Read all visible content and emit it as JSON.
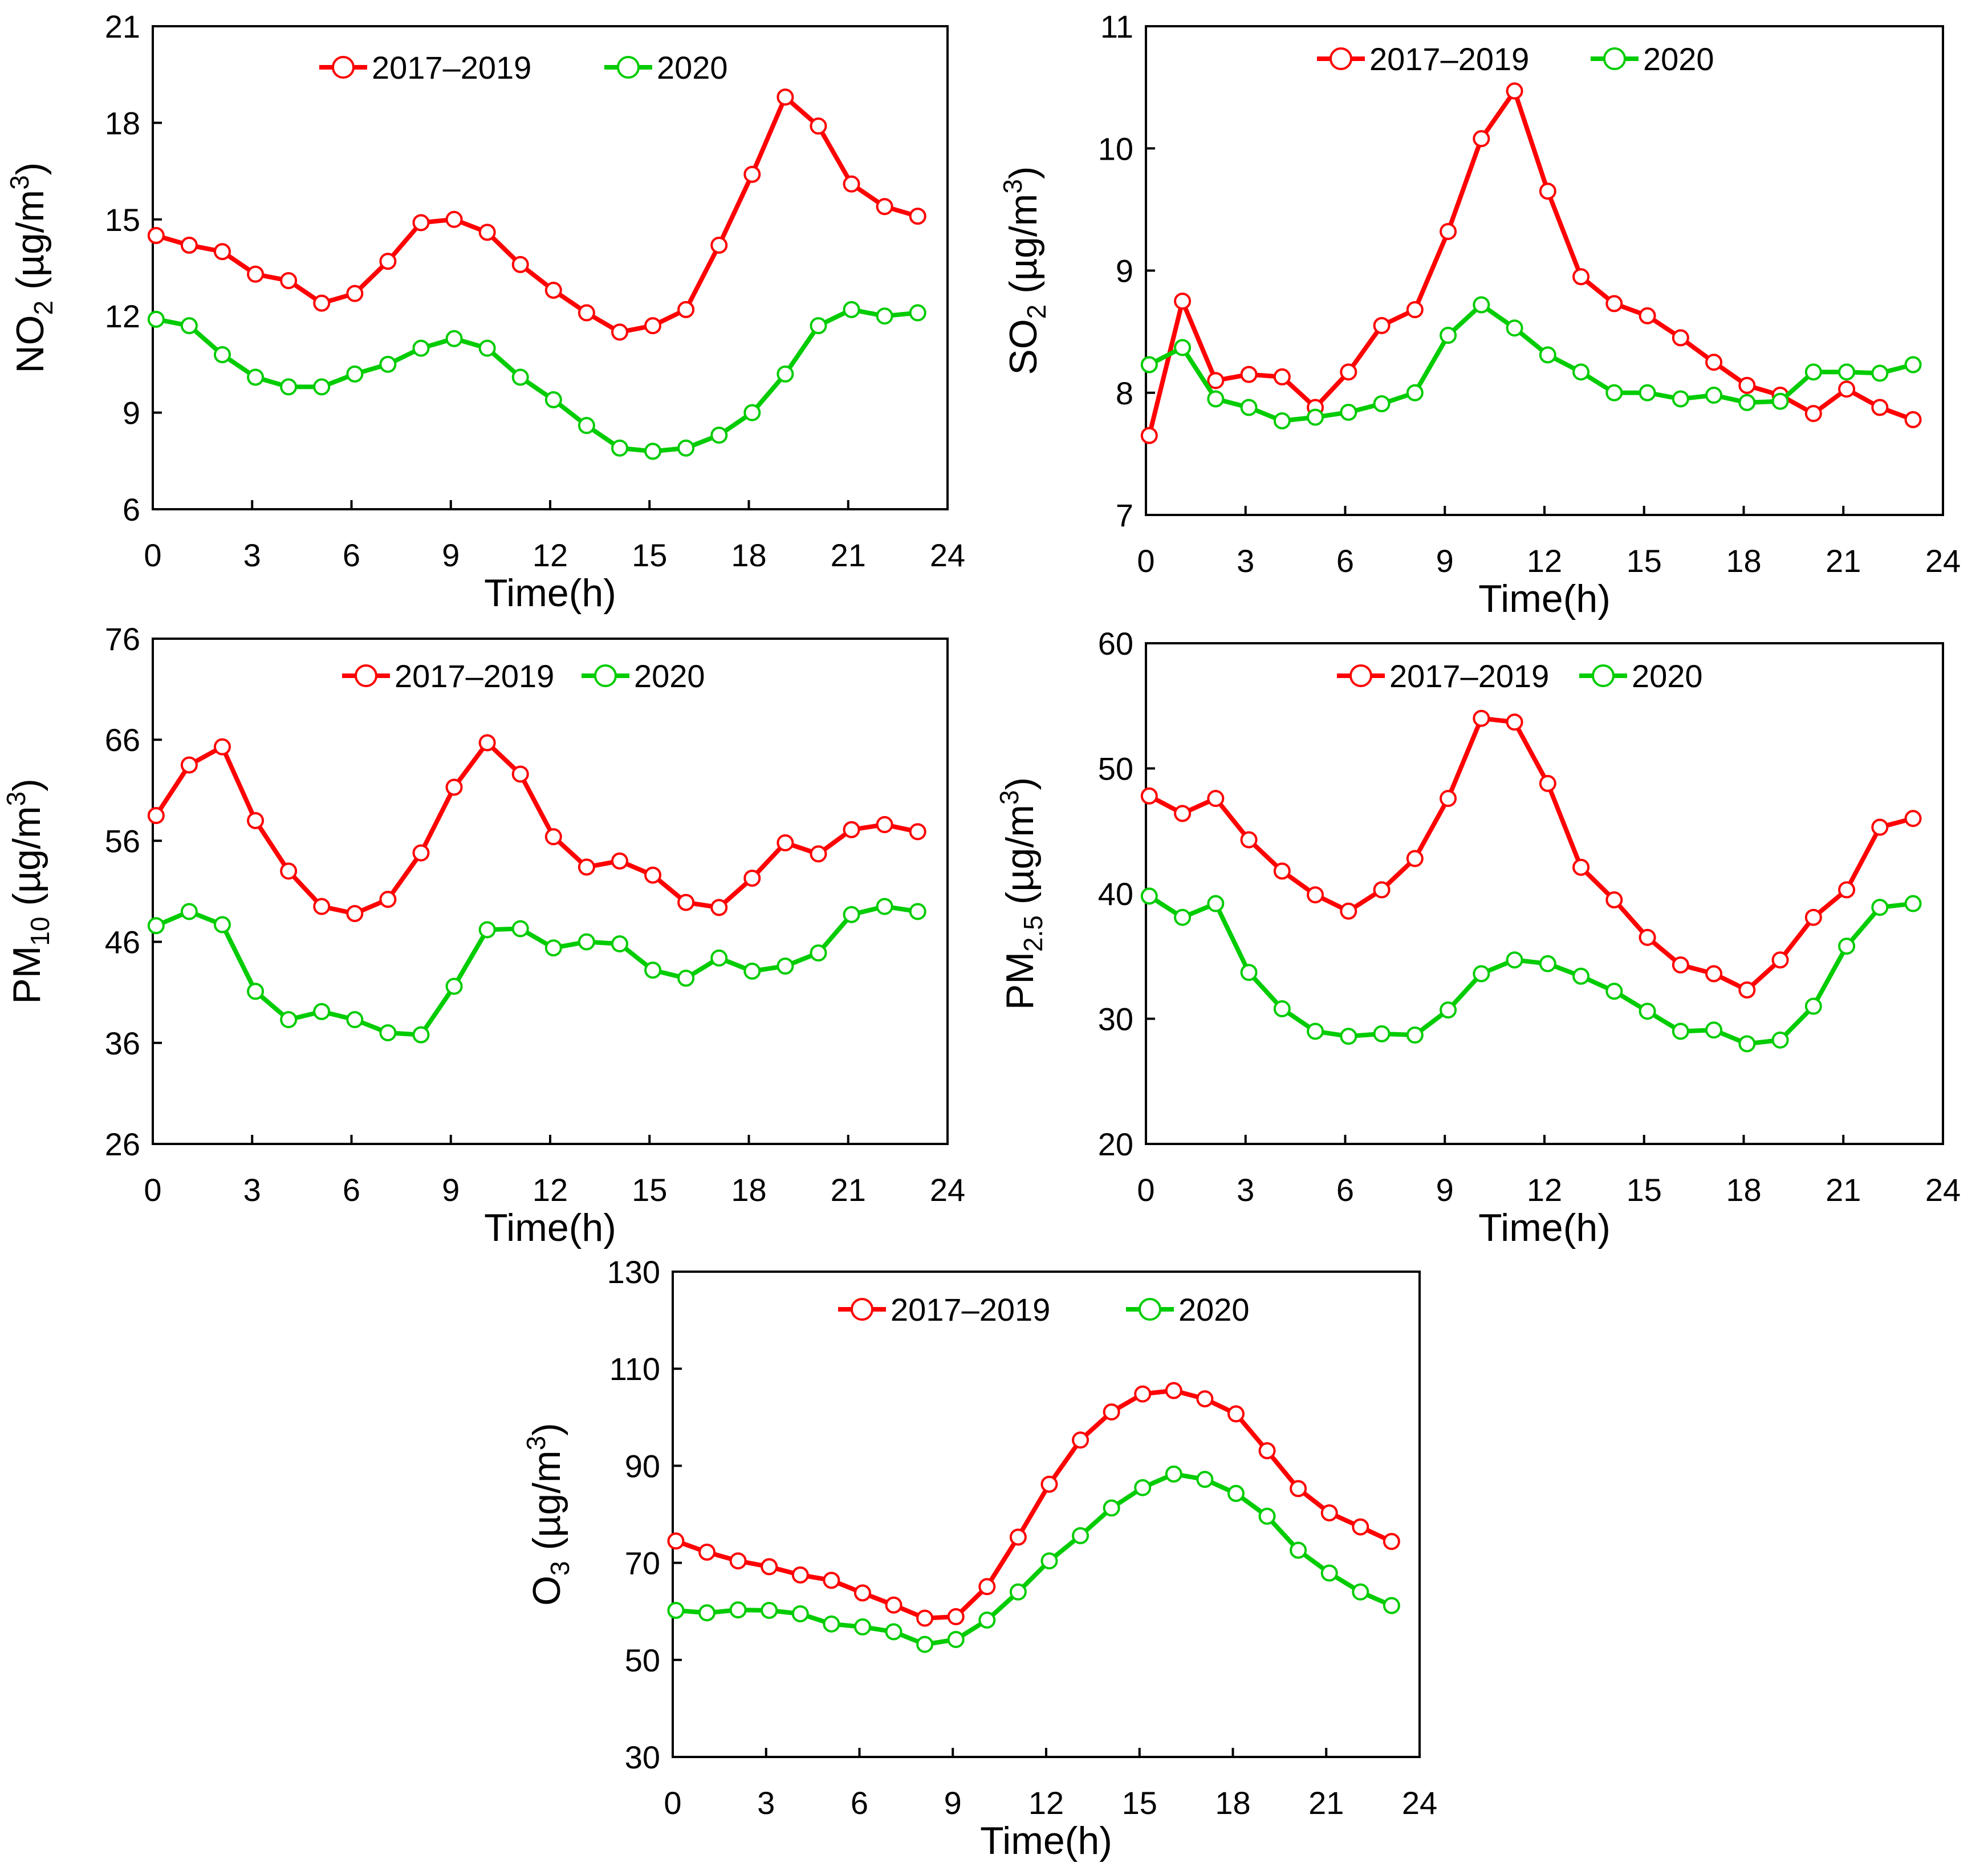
{
  "colors": {
    "series_2017_2019": "#ff0000",
    "series_2020": "#00cc00"
  },
  "chart_data": [
    {
      "type": "line",
      "name": "no2",
      "xlabel": "Time(h)",
      "ylabel": {
        "base": "NO",
        "sub": "2",
        "unit": " (µg/m",
        "sup": "3",
        "close": ")"
      },
      "ylim": [
        6,
        21
      ],
      "yticks": [
        "6",
        "9",
        "12",
        "15",
        "18",
        "21"
      ],
      "xlim": [
        0,
        24
      ],
      "xticks": [
        "0",
        "3",
        "6",
        "9",
        "12",
        "15",
        "18",
        "21",
        "24"
      ],
      "x": [
        0.1,
        1.1,
        2.1,
        3.1,
        4.1,
        5.1,
        6.1,
        7.1,
        8.1,
        9.1,
        10.1,
        11.1,
        12.1,
        13.1,
        14.1,
        15.1,
        16.1,
        17.1,
        18.1,
        19.1,
        20.1,
        21.1,
        22.1,
        23.1
      ],
      "series": [
        {
          "name": "2017–2019",
          "values": [
            14.5,
            14.2,
            14.0,
            13.3,
            13.1,
            12.4,
            12.7,
            13.7,
            14.9,
            15.0,
            14.6,
            13.6,
            12.8,
            12.1,
            11.5,
            11.7,
            12.2,
            14.2,
            16.4,
            18.8,
            17.9,
            16.1,
            15.4,
            15.1
          ]
        },
        {
          "name": "2020",
          "values": [
            11.9,
            11.7,
            10.8,
            10.1,
            9.8,
            9.8,
            10.2,
            10.5,
            11.0,
            11.3,
            11.0,
            10.1,
            9.4,
            8.6,
            7.9,
            7.8,
            7.9,
            8.3,
            9.0,
            10.2,
            11.7,
            12.2,
            12.0,
            12.1
          ]
        }
      ]
    },
    {
      "type": "line",
      "name": "so2",
      "xlabel": "Time(h)",
      "ylabel": {
        "base": "SO",
        "sub": "2",
        "unit": " (µg/m",
        "sup": "3",
        "close": ")"
      },
      "ylim": [
        7,
        11
      ],
      "yticks": [
        "7",
        "8",
        "9",
        "10",
        "11"
      ],
      "xlim": [
        0,
        24
      ],
      "xticks": [
        "0",
        "3",
        "6",
        "9",
        "12",
        "15",
        "18",
        "21",
        "24"
      ],
      "x": [
        0.1,
        1.1,
        2.1,
        3.1,
        4.1,
        5.1,
        6.1,
        7.1,
        8.1,
        9.1,
        10.1,
        11.1,
        12.1,
        13.1,
        14.1,
        15.1,
        16.1,
        17.1,
        18.1,
        19.1,
        20.1,
        21.1,
        22.1,
        23.1
      ],
      "series": [
        {
          "name": "2017–2019",
          "values": [
            7.65,
            8.75,
            8.1,
            8.15,
            8.13,
            7.88,
            8.17,
            8.55,
            8.68,
            9.32,
            10.08,
            10.47,
            9.65,
            8.95,
            8.73,
            8.63,
            8.45,
            8.25,
            8.06,
            7.98,
            7.83,
            8.03,
            7.88,
            7.78
          ]
        },
        {
          "name": "2020",
          "values": [
            8.23,
            8.37,
            7.95,
            7.88,
            7.77,
            7.8,
            7.84,
            7.91,
            8.0,
            8.47,
            8.72,
            8.53,
            8.31,
            8.17,
            8.0,
            8.0,
            7.95,
            7.98,
            7.92,
            7.93,
            8.17,
            8.17,
            8.16,
            8.23
          ]
        }
      ]
    },
    {
      "type": "line",
      "name": "pm10",
      "xlabel": "Time(h)",
      "ylabel": {
        "base": "PM",
        "sub": "10",
        "unit": " (µg/m",
        "sup": "3",
        "close": ")"
      },
      "ylim": [
        26,
        76
      ],
      "yticks": [
        "26",
        "36",
        "46",
        "56",
        "66",
        "76"
      ],
      "xlim": [
        0,
        24
      ],
      "xticks": [
        "0",
        "3",
        "6",
        "9",
        "12",
        "15",
        "18",
        "21",
        "24"
      ],
      "x": [
        0.1,
        1.1,
        2.1,
        3.1,
        4.1,
        5.1,
        6.1,
        7.1,
        8.1,
        9.1,
        10.1,
        11.1,
        12.1,
        13.1,
        14.1,
        15.1,
        16.1,
        17.1,
        18.1,
        19.1,
        20.1,
        21.1,
        22.1,
        23.1
      ],
      "series": [
        {
          "name": "2017–2019",
          "values": [
            58.5,
            63.5,
            65.3,
            58.0,
            53.0,
            49.5,
            48.8,
            50.2,
            54.8,
            61.3,
            65.7,
            62.6,
            56.4,
            53.4,
            54.0,
            52.6,
            49.9,
            49.4,
            52.3,
            55.8,
            54.7,
            57.1,
            57.6,
            56.9
          ]
        },
        {
          "name": "2020",
          "values": [
            47.6,
            49.0,
            47.7,
            41.1,
            38.3,
            39.1,
            38.3,
            37.0,
            36.8,
            41.6,
            47.2,
            47.3,
            45.4,
            46.0,
            45.8,
            43.2,
            42.4,
            44.4,
            43.1,
            43.6,
            44.9,
            48.7,
            49.5,
            49.0
          ]
        }
      ]
    },
    {
      "type": "line",
      "name": "pm25",
      "xlabel": "Time(h)",
      "ylabel": {
        "base": "PM",
        "sub": "2.5",
        "unit": " (µg/m",
        "sup": "3",
        "close": ")"
      },
      "ylim": [
        20,
        60
      ],
      "yticks": [
        "20",
        "30",
        "40",
        "50",
        "60"
      ],
      "xlim": [
        0,
        24
      ],
      "xticks": [
        "0",
        "3",
        "6",
        "9",
        "12",
        "15",
        "18",
        "21",
        "24"
      ],
      "x": [
        0.1,
        1.1,
        2.1,
        3.1,
        4.1,
        5.1,
        6.1,
        7.1,
        8.1,
        9.1,
        10.1,
        11.1,
        12.1,
        13.1,
        14.1,
        15.1,
        16.1,
        17.1,
        18.1,
        19.1,
        20.1,
        21.1,
        22.1,
        23.1
      ],
      "series": [
        {
          "name": "2017–2019",
          "values": [
            47.8,
            46.4,
            47.6,
            44.3,
            41.8,
            39.9,
            38.6,
            40.3,
            42.8,
            47.6,
            54.0,
            53.7,
            48.8,
            42.1,
            39.5,
            36.5,
            34.3,
            33.6,
            32.3,
            34.7,
            38.1,
            40.3,
            45.3,
            46.0
          ]
        },
        {
          "name": "2020",
          "values": [
            39.8,
            38.1,
            39.2,
            33.7,
            30.8,
            29.0,
            28.6,
            28.8,
            28.7,
            30.7,
            33.6,
            34.7,
            34.4,
            33.4,
            32.2,
            30.6,
            29.0,
            29.1,
            28.0,
            28.3,
            31.0,
            35.8,
            38.9,
            39.2
          ]
        }
      ]
    },
    {
      "type": "line",
      "name": "o3",
      "xlabel": "Time(h)",
      "ylabel": {
        "base": "O",
        "sub": "3",
        "unit": " (µg/m",
        "sup": "3",
        "close": ")"
      },
      "ylim": [
        30,
        130
      ],
      "yticks": [
        "30",
        "50",
        "70",
        "90",
        "110",
        "130"
      ],
      "xlim": [
        0,
        24
      ],
      "xticks": [
        "0",
        "3",
        "6",
        "9",
        "12",
        "15",
        "18",
        "21",
        "24"
      ],
      "x": [
        0.1,
        1.1,
        2.1,
        3.1,
        4.1,
        5.1,
        6.1,
        7.1,
        8.1,
        9.1,
        10.1,
        11.1,
        12.1,
        13.1,
        14.1,
        15.1,
        16.1,
        17.1,
        18.1,
        19.1,
        20.1,
        21.1,
        22.1,
        23.1
      ],
      "series": [
        {
          "name": "2017–2019",
          "values": [
            74.5,
            72.2,
            70.4,
            69.2,
            67.5,
            66.4,
            63.8,
            61.3,
            58.6,
            58.9,
            65.1,
            75.3,
            86.2,
            95.3,
            101.1,
            104.8,
            105.5,
            103.8,
            100.7,
            93.1,
            85.3,
            80.3,
            77.4,
            74.4
          ]
        },
        {
          "name": "2020",
          "values": [
            60.2,
            59.7,
            60.3,
            60.2,
            59.5,
            57.4,
            56.8,
            55.8,
            53.2,
            54.2,
            58.2,
            64.0,
            70.4,
            75.6,
            81.3,
            85.5,
            88.3,
            87.2,
            84.3,
            79.6,
            72.6,
            67.9,
            64.0,
            61.2
          ]
        }
      ]
    }
  ]
}
